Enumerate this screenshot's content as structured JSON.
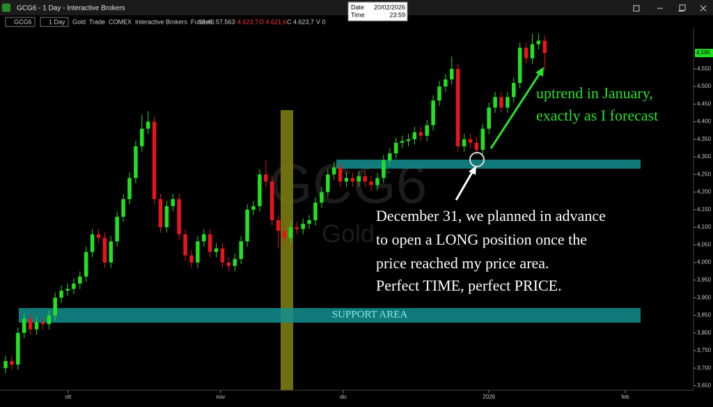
{
  "window": {
    "title": "GCG6 - 1 Day - Interactive Brokers",
    "symbol": "GCG6",
    "period": "1 Day",
    "info": "Gold  Trade  COMEX  Interactive Brokers  Futures",
    "clock": "05:45:57.563",
    "change": "-4.623,7",
    "open": "O 4.621,6",
    "close": "C 4.623,7",
    "volume": "V 0",
    "tooltip": {
      "date_label": "Date",
      "date": "20/02/2026",
      "time_label": "Time",
      "time": "23:59"
    }
  },
  "chart_data": {
    "type": "candlestick",
    "watermark": [
      "GCG6",
      "Gold"
    ],
    "open": [
      3700,
      3720,
      3710,
      3800,
      3840,
      3810,
      3830,
      3825,
      3850,
      3900,
      3920,
      3925,
      3940,
      3960,
      4030,
      4080,
      4070,
      4000,
      4060,
      4130,
      4180,
      4240,
      4330,
      4380,
      4400,
      4180,
      4100,
      4160,
      4180,
      4080,
      4020,
      4000,
      4060,
      4080,
      4030,
      4040,
      4000,
      3990,
      4010,
      4060,
      4150,
      4160,
      4250,
      4230,
      4120,
      4090,
      4070,
      4100,
      4095,
      4110,
      4120,
      4170,
      4200,
      4250,
      4270,
      4230,
      4240,
      4230,
      4245,
      4230,
      4220,
      4240,
      4290,
      4310,
      4340,
      4345,
      4350,
      4370,
      4360,
      4390,
      4460,
      4500,
      4520,
      4550,
      4330,
      4350,
      4340,
      4320,
      4380,
      4440,
      4470,
      4440,
      4470,
      4510,
      4610,
      4580,
      4620,
      4630
    ],
    "high": [
      3735,
      3735,
      3815,
      3855,
      3855,
      3845,
      3845,
      3865,
      3915,
      3935,
      3940,
      3955,
      3975,
      4045,
      4095,
      4095,
      4085,
      4075,
      4145,
      4195,
      4255,
      4345,
      4420,
      4430,
      4415,
      4195,
      4175,
      4195,
      4195,
      4095,
      4035,
      4075,
      4095,
      4095,
      4055,
      4055,
      4015,
      4025,
      4075,
      4165,
      4175,
      4265,
      4290,
      4245,
      4135,
      4105,
      4115,
      4115,
      4125,
      4135,
      4185,
      4215,
      4265,
      4285,
      4285,
      4255,
      4255,
      4260,
      4260,
      4245,
      4255,
      4305,
      4325,
      4355,
      4360,
      4365,
      4385,
      4385,
      4405,
      4475,
      4515,
      4535,
      4585,
      4565,
      4365,
      4365,
      4355,
      4395,
      4455,
      4485,
      4485,
      4485,
      4525,
      4625,
      4625,
      4650,
      4650,
      4645
    ],
    "low": [
      3685,
      3695,
      3695,
      3785,
      3795,
      3795,
      3810,
      3810,
      3835,
      3885,
      3905,
      3910,
      3925,
      3945,
      4015,
      4055,
      3985,
      3985,
      4045,
      4115,
      4165,
      4225,
      4315,
      4365,
      4165,
      4085,
      4085,
      4145,
      4065,
      4005,
      3985,
      3985,
      4045,
      4015,
      4015,
      3985,
      3975,
      3975,
      3995,
      4045,
      4135,
      4145,
      4215,
      4105,
      4040,
      4055,
      4055,
      4080,
      4080,
      4095,
      4105,
      4155,
      4185,
      4235,
      4215,
      4215,
      4215,
      4215,
      4215,
      4205,
      4205,
      4225,
      4275,
      4295,
      4325,
      4330,
      4335,
      4345,
      4345,
      4375,
      4445,
      4485,
      4505,
      4315,
      4315,
      4325,
      4305,
      4305,
      4365,
      4425,
      4425,
      4425,
      4455,
      4495,
      4565,
      4565,
      4605,
      4545
    ],
    "close": [
      3720,
      3710,
      3800,
      3840,
      3810,
      3830,
      3825,
      3850,
      3900,
      3920,
      3925,
      3940,
      3960,
      4030,
      4080,
      4070,
      4000,
      4060,
      4130,
      4180,
      4240,
      4330,
      4380,
      4400,
      4180,
      4100,
      4160,
      4180,
      4080,
      4020,
      4000,
      4060,
      4080,
      4030,
      4040,
      4000,
      3990,
      4010,
      4060,
      4150,
      4160,
      4250,
      4230,
      4120,
      4090,
      4070,
      4100,
      4095,
      4110,
      4120,
      4170,
      4200,
      4250,
      4270,
      4230,
      4240,
      4230,
      4245,
      4230,
      4220,
      4240,
      4290,
      4310,
      4340,
      4345,
      4350,
      4370,
      4360,
      4390,
      4460,
      4500,
      4520,
      4550,
      4330,
      4350,
      4340,
      4320,
      4380,
      4440,
      4470,
      4440,
      4470,
      4510,
      4610,
      4580,
      4620,
      4630,
      4595
    ],
    "up_color": "#22e022",
    "down_color": "#e8151c",
    "xlim": [
      -0.9,
      110.9
    ],
    "xticks": [
      {
        "value": 10.1,
        "label": "ott"
      },
      {
        "value": 34.7,
        "label": "nov"
      },
      {
        "value": 54.5,
        "label": "dic"
      },
      {
        "value": 78,
        "label": "2026"
      },
      {
        "value": 100,
        "label": "feb"
      }
    ],
    "ylim": [
      3637,
      4706
    ],
    "yticks": [
      {
        "value": 3650,
        "label": "3,650"
      },
      {
        "value": 3700,
        "label": "3,700"
      },
      {
        "value": 3750,
        "label": "3,750"
      },
      {
        "value": 3800,
        "label": "3,800"
      },
      {
        "value": 3850,
        "label": "3,850"
      },
      {
        "value": 3900,
        "label": "3,900"
      },
      {
        "value": 3950,
        "label": "3,950"
      },
      {
        "value": 4000,
        "label": "4,000"
      },
      {
        "value": 4050,
        "label": "4,050"
      },
      {
        "value": 4100,
        "label": "4,100"
      },
      {
        "value": 4150,
        "label": "4,150"
      },
      {
        "value": 4200,
        "label": "4,200"
      },
      {
        "value": 4250,
        "label": "4,250"
      },
      {
        "value": 4300,
        "label": "4,300"
      },
      {
        "value": 4350,
        "label": "4,350"
      },
      {
        "value": 4400,
        "label": "4,400"
      },
      {
        "value": 4450,
        "label": "4,450"
      },
      {
        "value": 4500,
        "label": "4,500"
      },
      {
        "value": 4550,
        "label": "4,550"
      }
    ],
    "last_price": {
      "value": 4595,
      "label": "4,595"
    },
    "annotations": {
      "support": "SUPPORT AREA",
      "uptrend": [
        "uptrend in January,",
        "exactly as I forecast"
      ],
      "plan": [
        "December 31, we planned in advance",
        "to open a LONG position once the",
        "price reached my price area.",
        "Perfect TIME, perfect PRICE."
      ]
    }
  }
}
